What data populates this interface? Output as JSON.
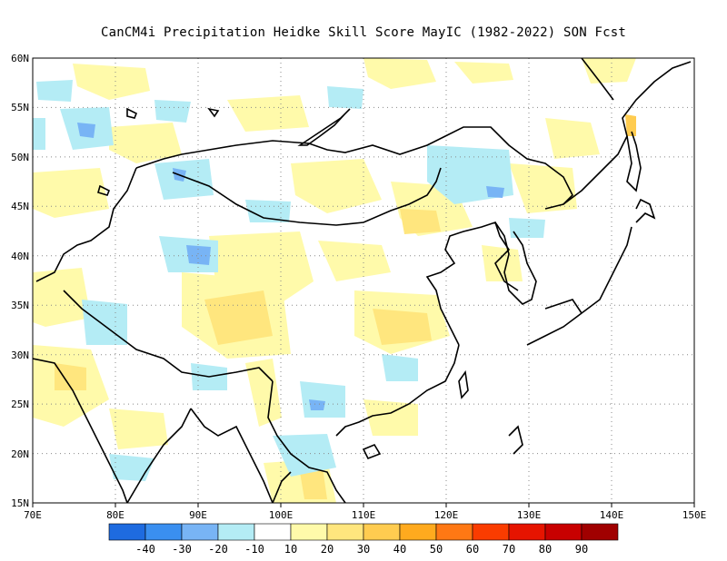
{
  "title": "CanCM4i  Precipitation Heidke Skill Score MayIC (1982-2022) SON Fcst",
  "map": {
    "lon_labels": [
      "70E",
      "80E",
      "90E",
      "100E",
      "110E",
      "120E",
      "130E",
      "140E",
      "150E"
    ],
    "lat_labels": [
      "60N",
      "55N",
      "50N",
      "45N",
      "40N",
      "35N",
      "30N",
      "25N",
      "20N",
      "15N"
    ],
    "lon_range": [
      70,
      150
    ],
    "lat_range": [
      15,
      60
    ],
    "grid": "dotted"
  },
  "colorbar": {
    "labels": [
      "-40",
      "-30",
      "-20",
      "-10",
      "10",
      "20",
      "30",
      "40",
      "50",
      "60",
      "70",
      "80",
      "90"
    ],
    "colors": [
      "#1e6be0",
      "#3a8ff0",
      "#78b4f5",
      "#b4ecf5",
      "#ffffff",
      "#fffaaa",
      "#ffe67e",
      "#ffcc50",
      "#ffaa1e",
      "#ff7814",
      "#fa3c00",
      "#e61400",
      "#c80000",
      "#a00000"
    ]
  },
  "colors": {
    "light_blue": "#b4ecf5",
    "mid_blue": "#78b4f5",
    "blue": "#3a8ff0",
    "light_yellow": "#fffaaa",
    "yellow": "#ffe67e",
    "orange": "#ffcc50"
  }
}
